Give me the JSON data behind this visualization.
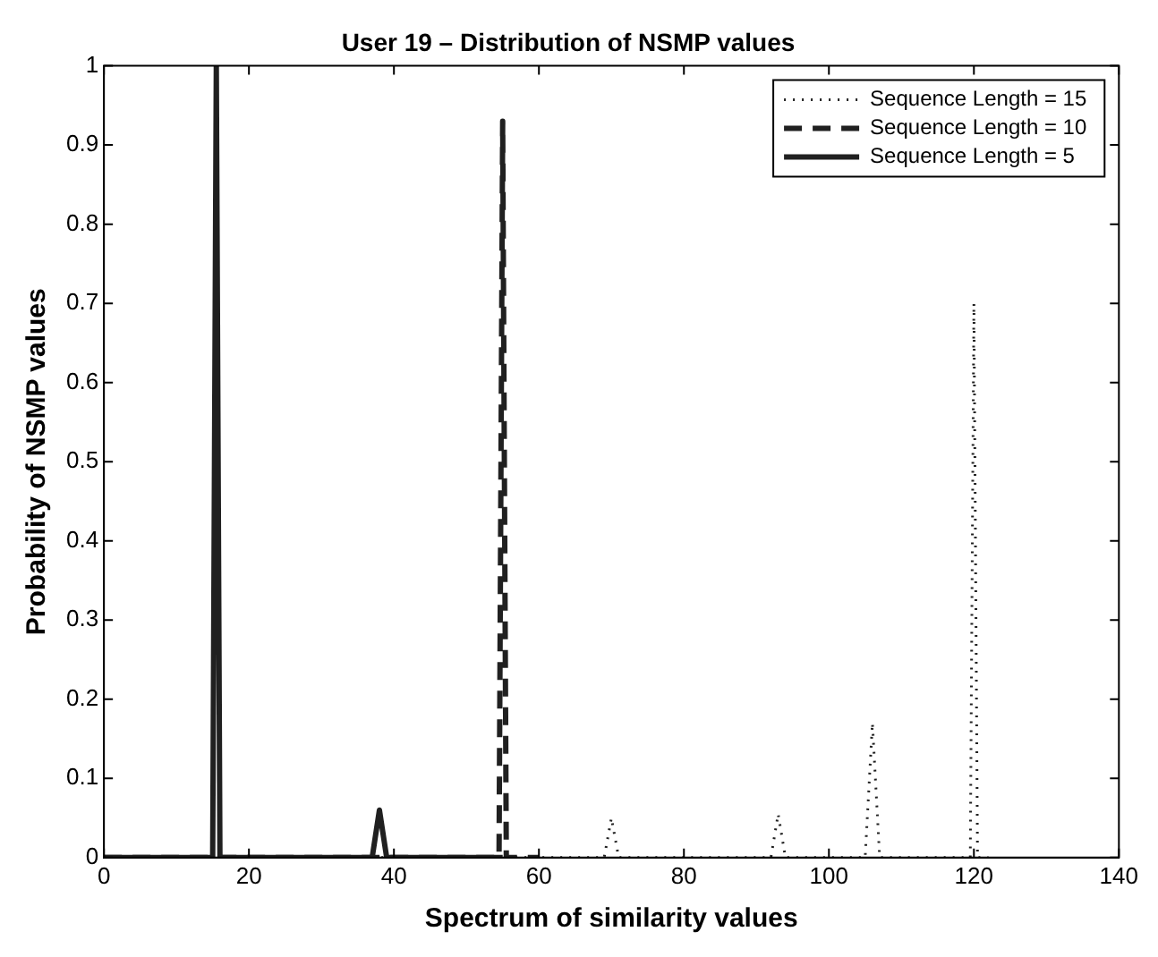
{
  "chart_data": {
    "type": "line",
    "title": "User 19 – Distribution of NSMP values",
    "xlabel": "Spectrum of similarity values",
    "ylabel": "Probability of NSMP values",
    "xlim": [
      0,
      140
    ],
    "xticks": [
      0,
      20,
      40,
      60,
      80,
      100,
      120,
      140
    ],
    "ylim": [
      0,
      1
    ],
    "yticks": [
      0,
      0.1,
      0.2,
      0.3,
      0.4,
      0.5,
      0.6,
      0.7,
      0.8,
      0.9,
      1
    ],
    "grid": false,
    "legend": "top right",
    "marker": "none",
    "series": [
      {
        "name": "Sequence Length = 15",
        "color": "#202020",
        "line_style": "dotted",
        "x": [
          0,
          69,
          70,
          71,
          92,
          93,
          94,
          105,
          106,
          107,
          119.5,
          120,
          120.5,
          122
        ],
        "values": [
          0,
          0,
          0.05,
          0,
          0,
          0.055,
          0,
          0,
          0.17,
          0,
          0,
          0.7,
          0,
          0
        ]
      },
      {
        "name": "Sequence Length = 10",
        "color": "#202020",
        "line_style": "dashed",
        "x": [
          0,
          54.5,
          55,
          55.5,
          60
        ],
        "values": [
          0,
          0,
          0.93,
          0,
          0
        ]
      },
      {
        "name": "Sequence Length = 5",
        "color": "#202020",
        "line_style": "solid",
        "x": [
          0,
          15,
          15.5,
          16,
          37,
          38,
          39,
          55
        ],
        "values": [
          0,
          0,
          1,
          0,
          0,
          0.06,
          0,
          0
        ]
      }
    ]
  }
}
